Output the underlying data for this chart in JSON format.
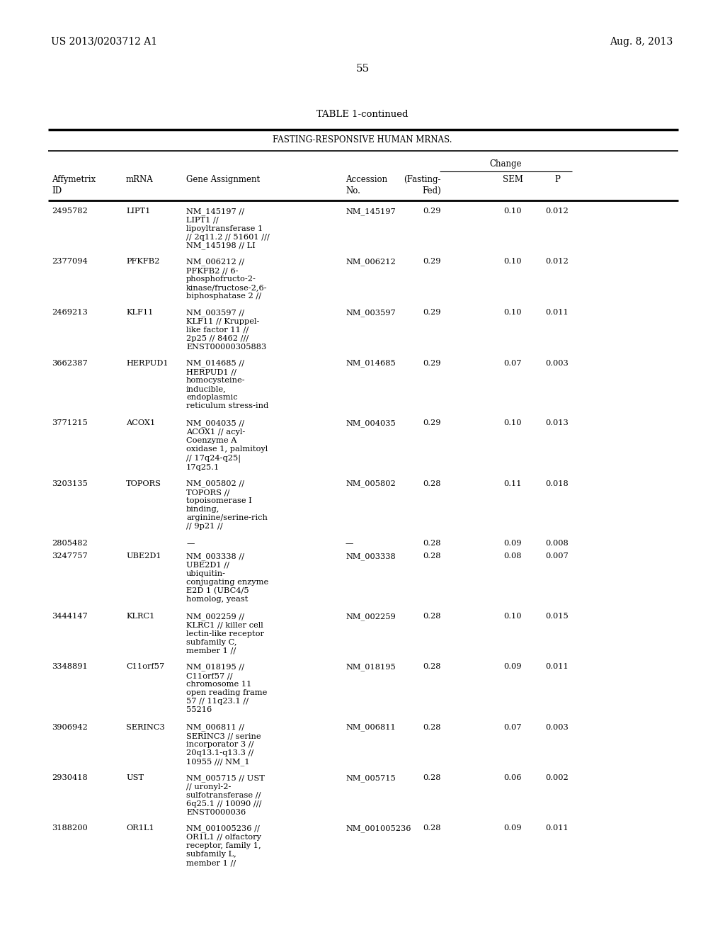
{
  "header_left": "US 2013/0203712 A1",
  "header_right": "Aug. 8, 2013",
  "page_number": "55",
  "table_title": "TABLE 1-continued",
  "table_subtitle": "FASTING-RESPONSIVE HUMAN MRNAS.",
  "change_header": "Change",
  "rows": [
    {
      "id": "2495782",
      "mrna": "LIPT1",
      "gene": "NM_145197 //\nLIPT1 //\nlipoyltransferase 1\n// 2q11.2 // 51601 ///\nNM_145198 // LI",
      "accession": "NM_145197",
      "fasting_fed": "0.29",
      "sem": "0.10",
      "p": "0.012",
      "nlines": 5
    },
    {
      "id": "2377094",
      "mrna": "PFKFB2",
      "gene": "NM_006212 //\nPFKFB2 // 6-\nphosphofructo-2-\nkinase/fructose-2,6-\nbiphosphatase 2 //",
      "accession": "NM_006212",
      "fasting_fed": "0.29",
      "sem": "0.10",
      "p": "0.012",
      "nlines": 5
    },
    {
      "id": "2469213",
      "mrna": "KLF11",
      "gene": "NM_003597 //\nKLF11 // Kruppel-\nlike factor 11 //\n2p25 // 8462 ///\nENST00000305883",
      "accession": "NM_003597",
      "fasting_fed": "0.29",
      "sem": "0.10",
      "p": "0.011",
      "nlines": 5
    },
    {
      "id": "3662387",
      "mrna": "HERPUD1",
      "gene": "NM_014685 //\nHERPUD1 //\nhomocysteine-\ninducible,\nendoplasmic\nreticulum stress-ind",
      "accession": "NM_014685",
      "fasting_fed": "0.29",
      "sem": "0.07",
      "p": "0.003",
      "nlines": 6
    },
    {
      "id": "3771215",
      "mrna": "ACOX1",
      "gene": "NM_004035 //\nACOX1 // acyl-\nCoenzyme A\noxidase 1, palmitoyl\n// 17q24-q25|\n17q25.1",
      "accession": "NM_004035",
      "fasting_fed": "0.29",
      "sem": "0.10",
      "p": "0.013",
      "nlines": 6
    },
    {
      "id": "3203135",
      "mrna": "TOPORS",
      "gene": "NM_005802 //\nTOPORS //\ntopoisomerase I\nbinding,\narginine/serine-rich\n// 9p21 //",
      "accession": "NM_005802",
      "fasting_fed": "0.28",
      "sem": "0.11",
      "p": "0.018",
      "nlines": 6
    },
    {
      "id": "2805482",
      "mrna": "",
      "gene": "—",
      "accession": "—",
      "fasting_fed": "0.28",
      "sem": "0.09",
      "p": "0.008",
      "nlines": 1
    },
    {
      "id": "3247757",
      "mrna": "UBE2D1",
      "gene": "NM_003338 //\nUBE2D1 //\nubiquitin-\nconjugating enzyme\nE2D 1 (UBC4/5\nhomolog, yeast",
      "accession": "NM_003338",
      "fasting_fed": "0.28",
      "sem": "0.08",
      "p": "0.007",
      "nlines": 6
    },
    {
      "id": "3444147",
      "mrna": "KLRC1",
      "gene": "NM_002259 //\nKLRC1 // killer cell\nlectin-like receptor\nsubfamily C,\nmember 1 //",
      "accession": "NM_002259",
      "fasting_fed": "0.28",
      "sem": "0.10",
      "p": "0.015",
      "nlines": 5
    },
    {
      "id": "3348891",
      "mrna": "C11orf57",
      "gene": "NM_018195 //\nC11orf57 //\nchromosome 11\nopen reading frame\n57 // 11q23.1 //\n55216",
      "accession": "NM_018195",
      "fasting_fed": "0.28",
      "sem": "0.09",
      "p": "0.011",
      "nlines": 6
    },
    {
      "id": "3906942",
      "mrna": "SERINC3",
      "gene": "NM_006811 //\nSERINC3 // serine\nincorporator 3 //\n20q13.1-q13.3 //\n10955 /// NM_1",
      "accession": "NM_006811",
      "fasting_fed": "0.28",
      "sem": "0.07",
      "p": "0.003",
      "nlines": 5
    },
    {
      "id": "2930418",
      "mrna": "UST",
      "gene": "NM_005715 // UST\n// uronyl-2-\nsulfotransferase //\n6q25.1 // 10090 ///\nENST0000036",
      "accession": "NM_005715",
      "fasting_fed": "0.28",
      "sem": "0.06",
      "p": "0.002",
      "nlines": 5
    },
    {
      "id": "3188200",
      "mrna": "OR1L1",
      "gene": "NM_001005236 //\nOR1L1 // olfactory\nreceptor, family 1,\nsubfamily L,\nmember 1 //",
      "accession": "NM_001005236",
      "fasting_fed": "0.28",
      "sem": "0.09",
      "p": "0.011",
      "nlines": 5
    }
  ],
  "bg_color": "#ffffff",
  "text_color": "#000000"
}
